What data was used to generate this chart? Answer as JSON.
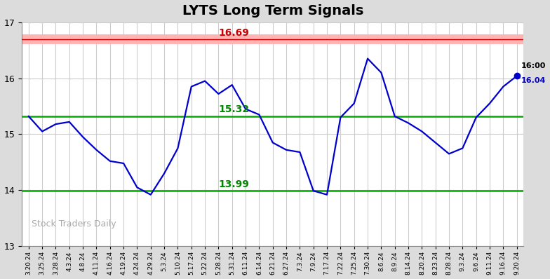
{
  "title": "LYTS Long Term Signals",
  "title_fontsize": 14,
  "title_fontweight": "bold",
  "background_color": "#dcdcdc",
  "plot_bg_color": "#ffffff",
  "line_color": "#0000cc",
  "line_width": 1.6,
  "red_line_value": 16.69,
  "red_line_color": "#ffb3b3",
  "red_line_edge_color": "#cc0000",
  "green_line_upper": 15.32,
  "green_line_lower": 13.99,
  "green_line_color": "#00aa00",
  "ylim": [
    13.0,
    17.0
  ],
  "yticks": [
    13,
    14,
    15,
    16,
    17
  ],
  "red_label_color": "#cc0000",
  "green_label_color": "#008800",
  "watermark_text": "Stock Traders Daily",
  "watermark_color": "#aaaaaa",
  "last_price_label": "16:00",
  "last_price_value": "16.04",
  "last_price_color": "#0000cc",
  "last_price_label_color": "#000000",
  "x_labels": [
    "3.20.24",
    "3.25.24",
    "3.28.24",
    "4.3.24",
    "4.8.24",
    "4.11.24",
    "4.16.24",
    "4.19.24",
    "4.24.24",
    "4.29.24",
    "5.3.24",
    "5.10.24",
    "5.17.24",
    "5.22.24",
    "5.28.24",
    "5.31.24",
    "6.11.24",
    "6.14.24",
    "6.21.24",
    "6.27.24",
    "7.3.24",
    "7.9.24",
    "7.17.24",
    "7.22.24",
    "7.25.24",
    "7.30.24",
    "8.6.24",
    "8.9.24",
    "8.14.24",
    "8.20.24",
    "8.23.24",
    "8.28.24",
    "9.3.24",
    "9.6.24",
    "9.11.24",
    "9.16.24",
    "9.20.24"
  ],
  "prices": [
    15.32,
    15.05,
    15.18,
    15.22,
    14.95,
    14.72,
    14.52,
    14.48,
    14.05,
    13.92,
    14.3,
    14.75,
    15.85,
    15.95,
    15.72,
    15.88,
    15.45,
    15.35,
    14.85,
    14.72,
    14.68,
    13.99,
    13.92,
    15.3,
    15.55,
    16.35,
    16.1,
    15.32,
    15.2,
    15.05,
    14.85,
    14.65,
    14.75,
    15.3,
    15.55,
    15.85,
    16.04
  ]
}
